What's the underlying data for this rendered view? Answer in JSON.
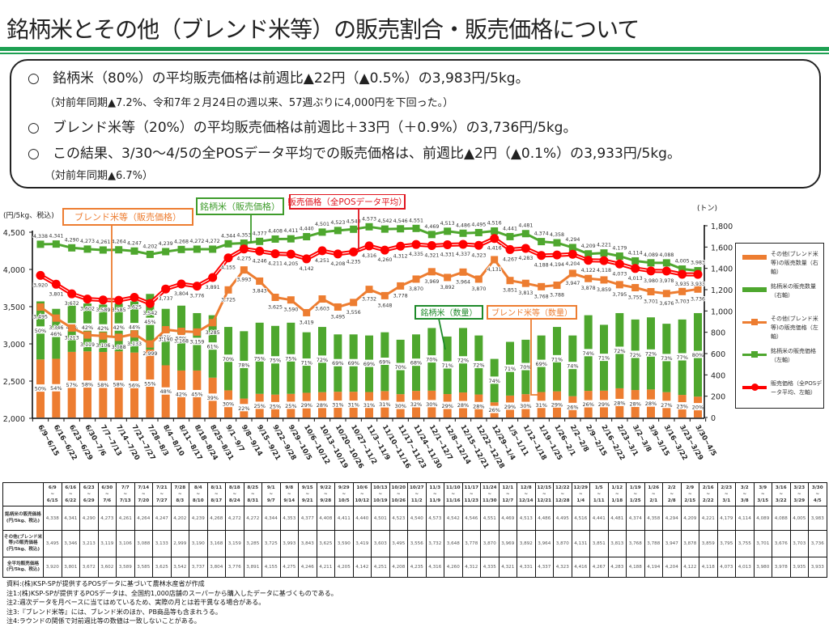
{
  "title": "銘柄米とその他（ブレンド米等）の販売割合・販売価格について",
  "summary": [
    {
      "bullet": "○",
      "text": "銘柄米（80%）の平均販売価格は前週比▲22円（▲0.5%）の3,983円/5kg。"
    },
    {
      "bullet": "",
      "text": "（対前年同期▲7.2%、令和7年２月24日の週以来、57週ぶりに4,000円を下回った。）"
    },
    {
      "bullet": "○",
      "text": "ブレンド米等（20%）の平均販売価格は前週比＋33円（＋0.9%）の3,736円/5kg。"
    },
    {
      "bullet": "○",
      "text": "この結果、3/30～4/5の全POSデータ平均での販売価格は、前週比▲2円（▲0.1%）の3,933円/5kg。"
    },
    {
      "bullet": "",
      "text": "（対前年同期▲6.7%）"
    }
  ],
  "chart_data": {
    "type": "bar",
    "title": "",
    "xlabel": "",
    "legend_position": "right",
    "grid": false,
    "categories": [
      "6/9~6/15",
      "6/16~6/22",
      "6/23~6/29",
      "6/30~7/6",
      "7/7~7/13",
      "7/14~7/20",
      "7/21~7/27",
      "7/28~8/3",
      "8/4~8/10",
      "8/11~8/17",
      "8/18~8/24",
      "8/25~8/31",
      "9/1~9/7",
      "9/8~9/14",
      "9/15~9/21",
      "9/22~9/28",
      "9/29~10/5",
      "10/6~10/12",
      "10/13~10/19",
      "10/20~10/26",
      "10/27~11/2",
      "11/3~11/9",
      "11/10~11/16",
      "11/17~11/23",
      "11/24~11/30",
      "12/1~12/7",
      "12/8~12/14",
      "12/15~12/21",
      "12/22~12/28",
      "12/29~1/4",
      "1/5~1/11",
      "1/12~1/18",
      "1/19~1/25",
      "1/26~2/1",
      "2/2~2/8",
      "2/9~2/15",
      "2/16~2/22",
      "2/23~3/1",
      "3/2~3/8",
      "3/9~3/15",
      "3/16~3/22",
      "3/23~3/29",
      "3/30~4/5"
    ],
    "left_axis": {
      "label": "(円/5kg、税込)",
      "range": [
        2000,
        4500
      ],
      "ticks": [
        2000,
        2500,
        3000,
        3500,
        4000,
        4500
      ]
    },
    "right_axis": {
      "label": "(トン)",
      "range": [
        0,
        1800
      ],
      "ticks": [
        0,
        200,
        400,
        600,
        800,
        1000,
        1200,
        1400,
        1600,
        1800
      ]
    },
    "series": [
      {
        "name": "その他(ブレンド米等)の販売数量（右軸）",
        "type": "stacked-bar",
        "axis": "right",
        "color": "#ed7d31",
        "values": [
          545,
          551,
          616,
          621,
          615,
          621,
          610,
          638,
          490,
          441,
          441,
          374,
          255,
          178,
          222,
          215,
          222,
          232,
          238,
          242,
          242,
          239,
          248,
          219,
          250,
          252,
          220,
          235,
          216,
          143,
          206,
          219,
          239,
          246,
          200,
          250,
          252,
          274,
          258,
          263,
          238,
          212,
          196
        ],
        "share_labels": [
          50,
          54,
          57,
          58,
          58,
          58,
          56,
          55,
          48,
          42,
          45,
          39,
          30,
          22,
          25,
          25,
          25,
          29,
          28,
          31,
          31,
          31,
          31,
          30,
          32,
          30,
          29,
          28,
          28,
          26,
          29,
          30,
          31,
          29,
          26,
          26,
          29,
          28,
          28,
          28,
          27,
          23,
          20
        ]
      },
      {
        "name": "銘柄米の販売数量（右軸）",
        "type": "stacked-bar",
        "axis": "right",
        "color": "#4ea72e",
        "values": [
          545,
          469,
          464,
          449,
          445,
          449,
          480,
          522,
          530,
          609,
          539,
          586,
          595,
          632,
          668,
          645,
          668,
          568,
          612,
          538,
          538,
          531,
          552,
          511,
          530,
          588,
          540,
          605,
          554,
          407,
          504,
          511,
          531,
          604,
          570,
          710,
          618,
          706,
          662,
          677,
          642,
          708,
          784
        ],
        "share_labels": [
          50,
          46,
          43,
          42,
          42,
          42,
          44,
          45,
          52,
          58,
          55,
          61,
          70,
          78,
          75,
          75,
          75,
          71,
          72,
          69,
          69,
          69,
          69,
          70,
          68,
          70,
          71,
          72,
          72,
          74,
          71,
          70,
          69,
          71,
          74,
          74,
          71,
          72,
          72,
          72,
          73,
          77,
          80
        ]
      },
      {
        "name": "その他(ブレンド米等)の販売価格（左軸）",
        "type": "line",
        "axis": "left",
        "color": "#ed7d31",
        "marker": "square",
        "values": [
          3495,
          3346,
          3213,
          3119,
          3106,
          3088,
          3133,
          2999,
          3190,
          3168,
          3159,
          3285,
          3725,
          3993,
          3843,
          3625,
          3590,
          3419,
          3603,
          3495,
          3556,
          3732,
          3648,
          3778,
          3870,
          3969,
          3892,
          3964,
          3870,
          4131,
          3851,
          3813,
          3768,
          3788,
          3947,
          3878,
          3859,
          3795,
          3755,
          3701,
          3676,
          3703,
          3736
        ]
      },
      {
        "name": "銘柄米の販売価格（左軸）",
        "type": "line",
        "axis": "left",
        "color": "#4ea72e",
        "marker": "square",
        "values": [
          4338,
          4341,
          4290,
          4273,
          4261,
          4264,
          4247,
          4202,
          4239,
          4268,
          4272,
          4272,
          4344,
          4353,
          4377,
          4408,
          4411,
          4440,
          4501,
          4523,
          4540,
          4573,
          4542,
          4546,
          4551,
          4469,
          4513,
          4486,
          4495,
          4516,
          4441,
          4481,
          4374,
          4358,
          4294,
          4209,
          4221,
          4179,
          4114,
          4089,
          4088,
          4005,
          3983
        ]
      },
      {
        "name": "販売価格（全POSデータ平均、左軸）",
        "type": "line",
        "axis": "left",
        "color": "#ff0000",
        "marker": "circle",
        "values": [
          3920,
          3801,
          3672,
          3602,
          3589,
          3585,
          3625,
          3542,
          3737,
          3804,
          3776,
          3891,
          4155,
          4275,
          4246,
          4211,
          4205,
          4142,
          4251,
          4208,
          4235,
          4316,
          4260,
          4312,
          4335,
          4321,
          4331,
          4337,
          4323,
          4416,
          4267,
          4283,
          4188,
          4194,
          4204,
          4122,
          4118,
          4073,
          4013,
          3980,
          3978,
          3935,
          3933
        ]
      }
    ],
    "annotations": [
      {
        "text": "ブレンド米等（販売価格）",
        "color": "#ed7d31"
      },
      {
        "text": "銘柄米（販売価格）",
        "color": "#3f9c2c"
      },
      {
        "text": "販売価格（全POSデータ平均）",
        "color": "#e0141e"
      },
      {
        "text": "銘柄米（数量）",
        "color": "#1e8a2a"
      },
      {
        "text": "ブレンド米等（数量）",
        "color": "#ed7d31"
      }
    ]
  },
  "table": {
    "columns": [
      {
        "from": "6/9",
        "to": "6/15"
      },
      {
        "from": "6/16",
        "to": "6/22"
      },
      {
        "from": "6/23",
        "to": "6/29"
      },
      {
        "from": "6/30",
        "to": "7/6"
      },
      {
        "from": "7/7",
        "to": "7/13"
      },
      {
        "from": "7/14",
        "to": "7/20"
      },
      {
        "from": "7/21",
        "to": "7/27"
      },
      {
        "from": "7/28",
        "to": "8/3"
      },
      {
        "from": "8/4",
        "to": "8/10"
      },
      {
        "from": "8/11",
        "to": "8/17"
      },
      {
        "from": "8/18",
        "to": "8/24"
      },
      {
        "from": "8/25",
        "to": "8/31"
      },
      {
        "from": "9/1",
        "to": "9/7"
      },
      {
        "from": "9/8",
        "to": "9/14"
      },
      {
        "from": "9/15",
        "to": "9/21"
      },
      {
        "from": "9/22",
        "to": "9/28"
      },
      {
        "from": "9/29",
        "to": "10/5"
      },
      {
        "from": "10/6",
        "to": "10/12"
      },
      {
        "from": "10/13",
        "to": "10/19"
      },
      {
        "from": "10/20",
        "to": "10/26"
      },
      {
        "from": "10/27",
        "to": "11/2"
      },
      {
        "from": "11/3",
        "to": "11/9"
      },
      {
        "from": "11/10",
        "to": "11/16"
      },
      {
        "from": "11/17",
        "to": "11/23"
      },
      {
        "from": "11/24",
        "to": "11/30"
      },
      {
        "from": "12/1",
        "to": "12/7"
      },
      {
        "from": "12/8",
        "to": "12/14"
      },
      {
        "from": "12/15",
        "to": "12/21"
      },
      {
        "from": "12/22",
        "to": "12/28"
      },
      {
        "from": "12/29",
        "to": "1/4"
      },
      {
        "from": "1/5",
        "to": "1/11"
      },
      {
        "from": "1/12",
        "to": "1/18"
      },
      {
        "from": "1/19",
        "to": "1/25"
      },
      {
        "from": "1/26",
        "to": "2/1"
      },
      {
        "from": "2/2",
        "to": "2/8"
      },
      {
        "from": "2/9",
        "to": "2/15"
      },
      {
        "from": "2/16",
        "to": "2/22"
      },
      {
        "from": "2/23",
        "to": "3/1"
      },
      {
        "from": "3/2",
        "to": "3/8"
      },
      {
        "from": "3/9",
        "to": "3/15"
      },
      {
        "from": "3/16",
        "to": "3/22"
      },
      {
        "from": "3/23",
        "to": "3/29"
      },
      {
        "from": "3/30",
        "to": "4/5"
      }
    ],
    "tilde": "~",
    "rows": [
      {
        "label_lines": [
          "銘柄米の販売価格",
          "(円/5kg、税込)"
        ],
        "values": [
          4338,
          4341,
          4290,
          4273,
          4261,
          4264,
          4247,
          4202,
          4239,
          4268,
          4272,
          4272,
          4344,
          4353,
          4377,
          4408,
          4411,
          4440,
          4501,
          4523,
          4540,
          4573,
          4542,
          4546,
          4551,
          4469,
          4513,
          4486,
          4495,
          4516,
          4441,
          4481,
          4374,
          4358,
          4294,
          4209,
          4221,
          4179,
          4114,
          4089,
          4088,
          4005,
          3983
        ]
      },
      {
        "label_lines": [
          "その他(ブレンド米",
          "等)の販売価格",
          "(円/5kg、税込)"
        ],
        "values": [
          3495,
          3346,
          3213,
          3119,
          3106,
          3088,
          3133,
          2999,
          3190,
          3168,
          3159,
          3285,
          3725,
          3993,
          3843,
          3625,
          3590,
          3419,
          3603,
          3495,
          3556,
          3732,
          3648,
          3778,
          3870,
          3969,
          3892,
          3964,
          3870,
          4131,
          3851,
          3813,
          3768,
          3788,
          3947,
          3878,
          3859,
          3795,
          3755,
          3701,
          3676,
          3703,
          3736
        ]
      },
      {
        "label_lines": [
          "全平均販売価格",
          "(円/5kg、税込)"
        ],
        "values": [
          3920,
          3801,
          3672,
          3602,
          3589,
          3585,
          3625,
          3542,
          3737,
          3804,
          3776,
          3891,
          4155,
          4275,
          4246,
          4211,
          4205,
          4142,
          4251,
          4208,
          4235,
          4316,
          4260,
          4312,
          4335,
          4321,
          4331,
          4337,
          4323,
          4416,
          4267,
          4283,
          4188,
          4194,
          4204,
          4122,
          4118,
          4073,
          4013,
          3980,
          3978,
          3935,
          3933
        ]
      }
    ]
  },
  "notes": [
    "資料:(株)KSP-SPが提供するPOSデータに基づいて農林水産省が作成",
    "注1:(株)KSP-SPが提供するPOSデータは、全国約1,000店舗のスーパーから購入したデータに基づくものである。",
    "注2:週次データを月ベースに当てはめているため、実際の月とは若干異なる場合がある。",
    "注3:『ブレンド米等』には、ブレンド米のほか、PB商品等も含まれうる。",
    "注4:ラウンドの関係で対前週比等の数値は一致しないことがある。"
  ]
}
